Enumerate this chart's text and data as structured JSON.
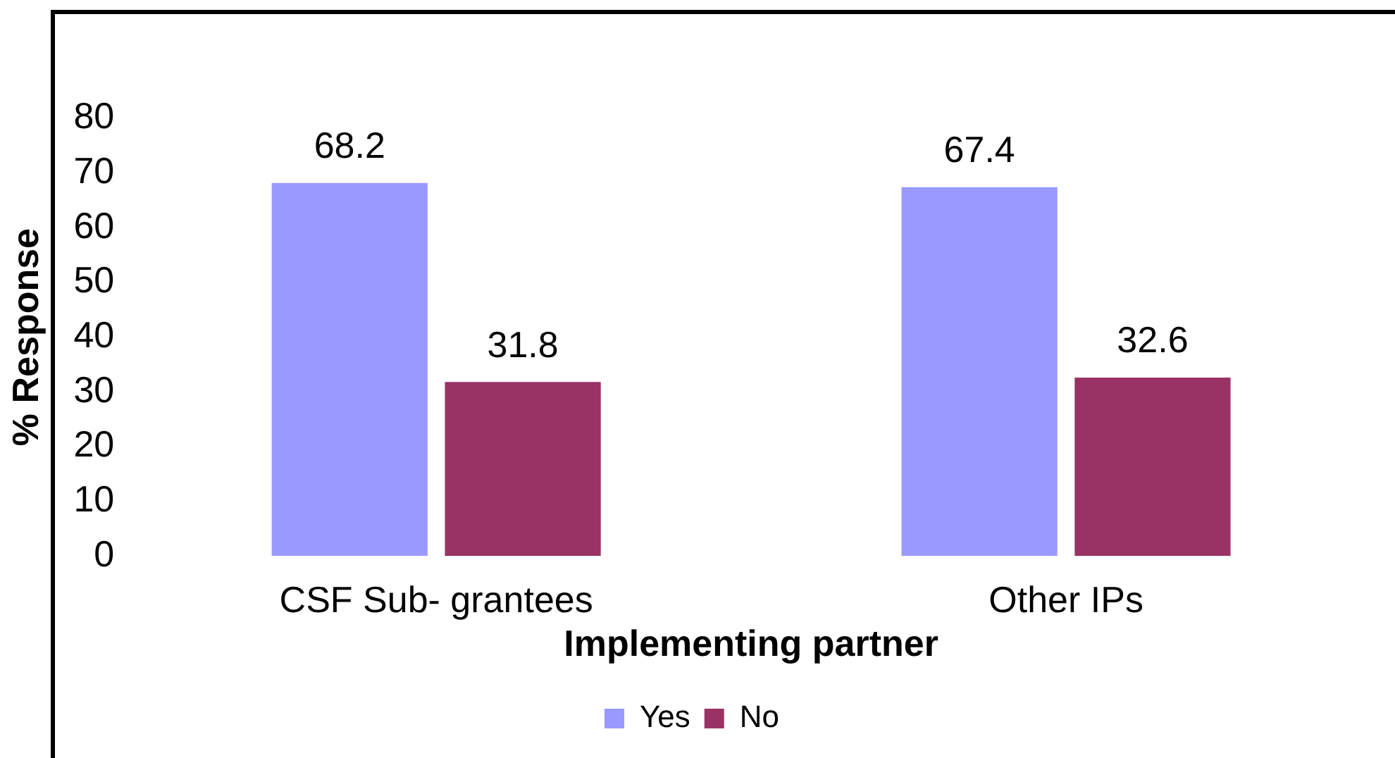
{
  "chart_data": {
    "type": "bar",
    "categories": [
      "CSF Sub- grantees",
      "Other IPs"
    ],
    "series": [
      {
        "name": "Yes",
        "color": "#9999ff",
        "values": [
          68.2,
          67.4
        ]
      },
      {
        "name": "No",
        "color": "#993366",
        "values": [
          31.8,
          32.6
        ]
      }
    ],
    "xlabel": "Implementing partner",
    "ylabel": "% Response",
    "ylim": [
      0,
      80
    ],
    "yticks": [
      0,
      10,
      20,
      30,
      40,
      50,
      60,
      70,
      80
    ],
    "legend": "bottom",
    "data_labels": true
  }
}
